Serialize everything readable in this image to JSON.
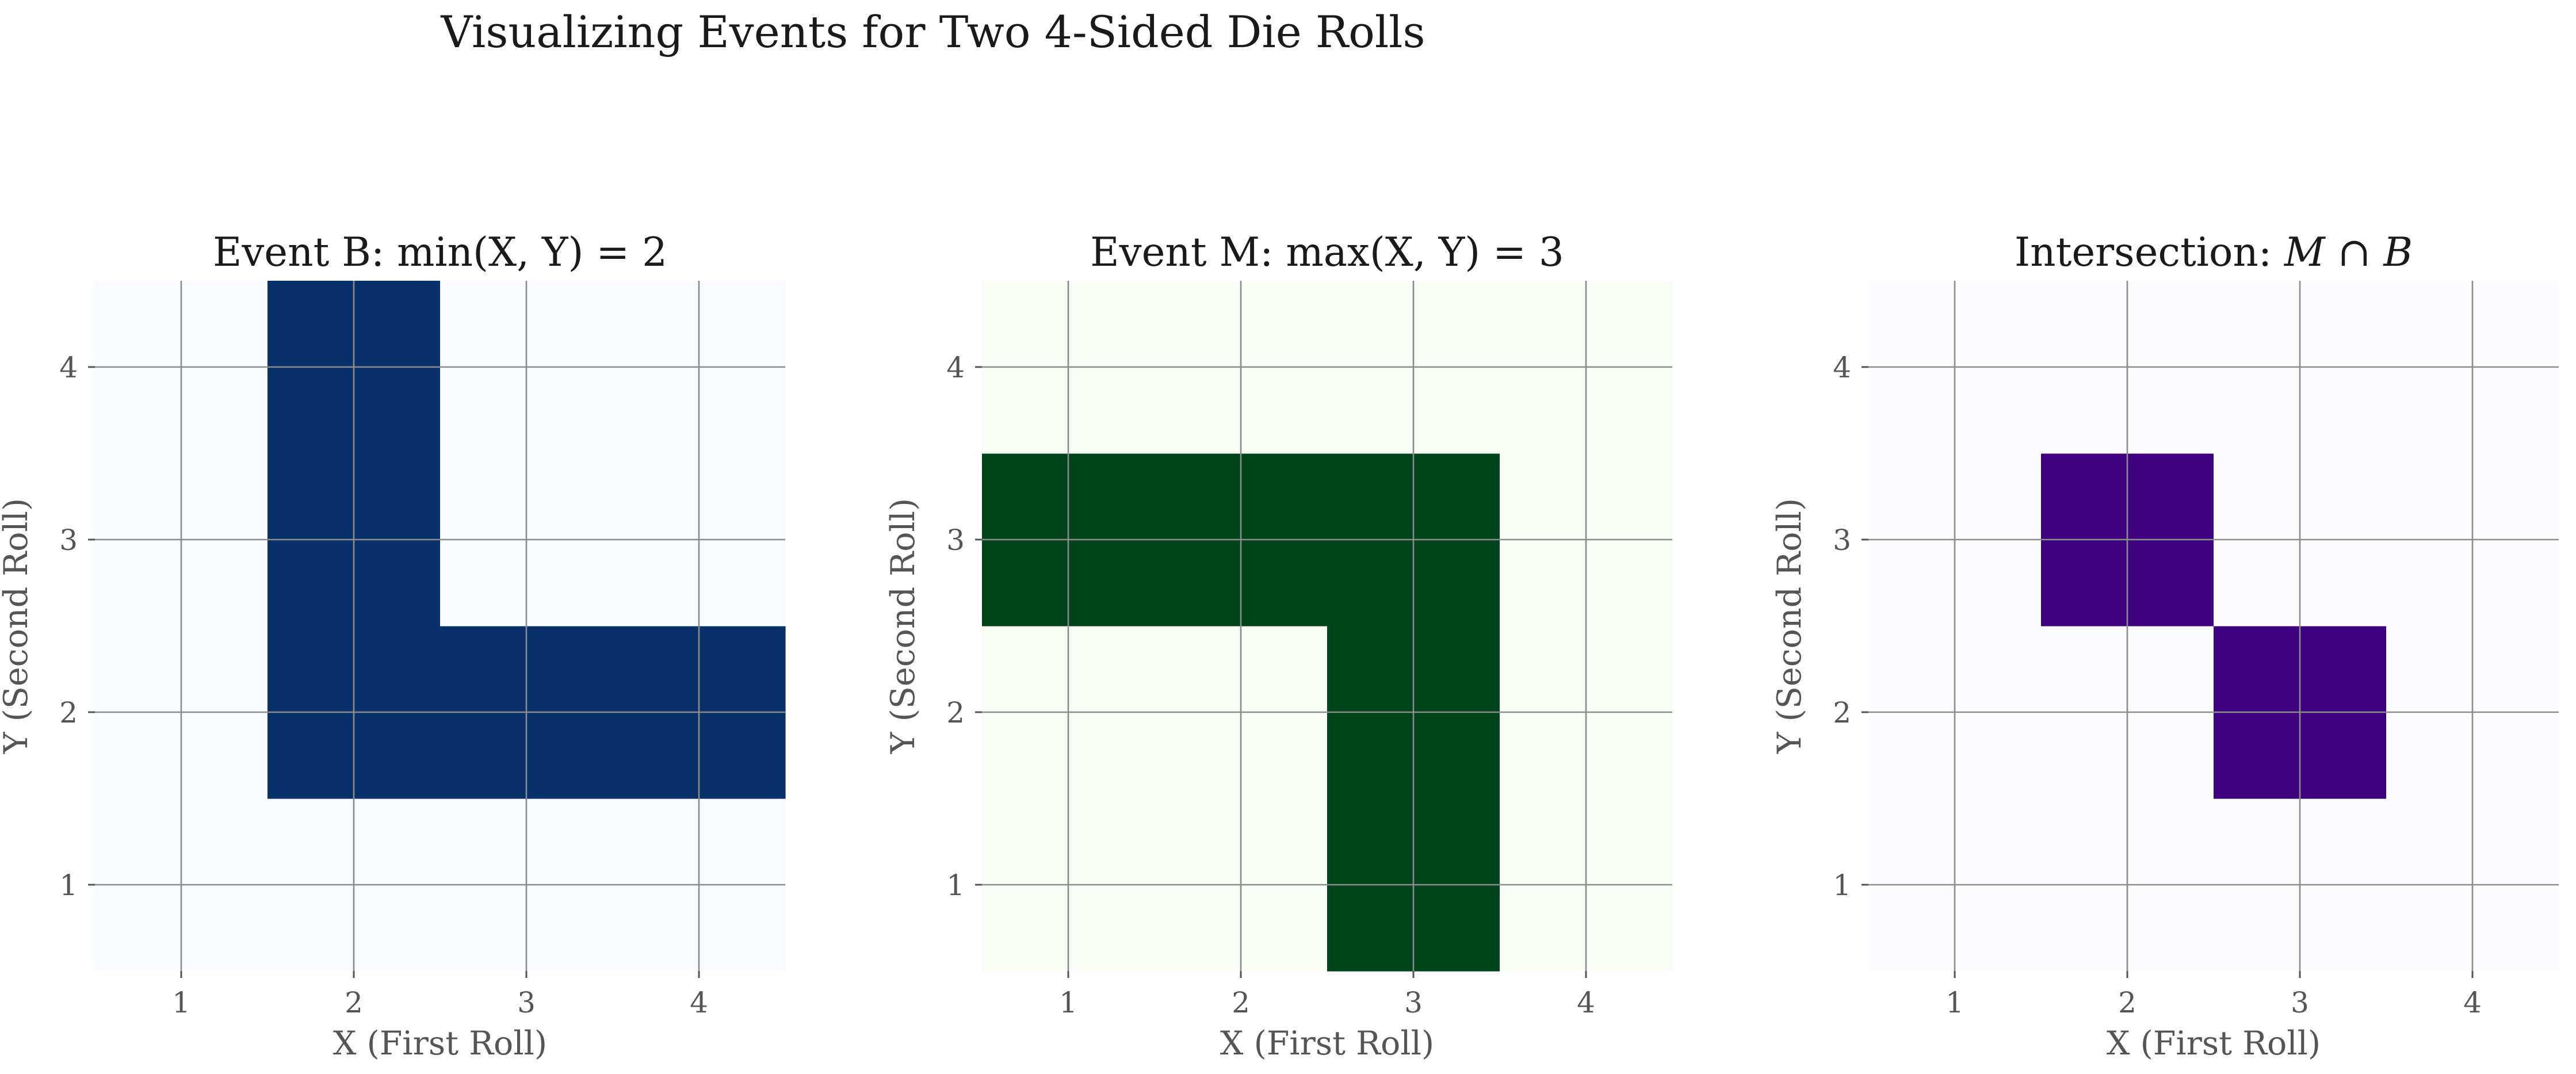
{
  "figure": {
    "suptitle": "Visualizing Events for Two 4-Sided Die Rolls"
  },
  "chart_data": [
    {
      "type": "heatmap",
      "title": "Event B: min(X, Y) = 2",
      "xlabel": "X (First Roll)",
      "ylabel": "Y (Second Roll)",
      "x": [
        1,
        2,
        3,
        4
      ],
      "y": [
        1,
        2,
        3,
        4
      ],
      "xlim": [
        0.5,
        4.5
      ],
      "ylim": [
        0.5,
        4.5
      ],
      "x_ticks": [
        "1",
        "2",
        "3",
        "4"
      ],
      "y_ticks": [
        "1",
        "2",
        "3",
        "4"
      ],
      "grid": true,
      "colors": {
        "on": "#08306b",
        "off": "#f7fbff"
      },
      "z": [
        [
          0,
          0,
          0,
          0
        ],
        [
          0,
          1,
          1,
          1
        ],
        [
          0,
          1,
          0,
          0
        ],
        [
          0,
          1,
          0,
          0
        ]
      ]
    },
    {
      "type": "heatmap",
      "title": "Event M: max(X, Y) = 3",
      "xlabel": "X (First Roll)",
      "ylabel": "Y (Second Roll)",
      "x": [
        1,
        2,
        3,
        4
      ],
      "y": [
        1,
        2,
        3,
        4
      ],
      "xlim": [
        0.5,
        4.5
      ],
      "ylim": [
        0.5,
        4.5
      ],
      "x_ticks": [
        "1",
        "2",
        "3",
        "4"
      ],
      "y_ticks": [
        "1",
        "2",
        "3",
        "4"
      ],
      "grid": true,
      "colors": {
        "on": "#00441b",
        "off": "#f7fcf5"
      },
      "z": [
        [
          0,
          0,
          1,
          0
        ],
        [
          0,
          0,
          1,
          0
        ],
        [
          1,
          1,
          1,
          0
        ],
        [
          0,
          0,
          0,
          0
        ]
      ]
    },
    {
      "type": "heatmap",
      "title_prefix": "Intersection: ",
      "title_math": "M ∩ B",
      "xlabel": "X (First Roll)",
      "ylabel": "Y (Second Roll)",
      "x": [
        1,
        2,
        3,
        4
      ],
      "y": [
        1,
        2,
        3,
        4
      ],
      "xlim": [
        0.5,
        4.5
      ],
      "ylim": [
        0.5,
        4.5
      ],
      "x_ticks": [
        "1",
        "2",
        "3",
        "4"
      ],
      "y_ticks": [
        "1",
        "2",
        "3",
        "4"
      ],
      "grid": true,
      "colors": {
        "on": "#3f007d",
        "off": "#fcfbfd"
      },
      "z": [
        [
          0,
          0,
          0,
          0
        ],
        [
          0,
          0,
          1,
          0
        ],
        [
          0,
          1,
          0,
          0
        ],
        [
          0,
          0,
          0,
          0
        ]
      ]
    }
  ]
}
